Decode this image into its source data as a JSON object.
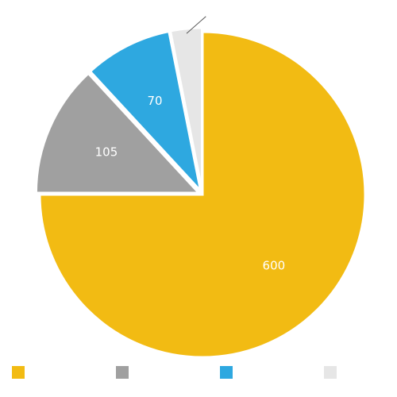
{
  "chart_data": {
    "type": "pie",
    "categories": [
      null,
      null,
      null,
      null
    ],
    "values": [
      600,
      105,
      70,
      25
    ],
    "colors": [
      "#f2bb13",
      "#a0a0a0",
      "#2ea8e0",
      "#e6e6e6"
    ],
    "label_color": "#ffffff",
    "legend": "bottom"
  }
}
